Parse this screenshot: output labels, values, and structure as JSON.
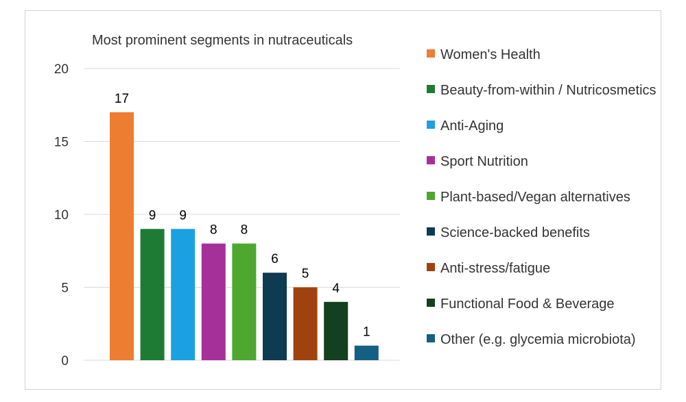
{
  "chart_data": {
    "type": "bar",
    "title": "Most prominent segments in nutraceuticals",
    "xlabel": "",
    "ylabel": "",
    "ylim": [
      0,
      20
    ],
    "yticks": [
      0,
      5,
      10,
      15,
      20
    ],
    "grid": true,
    "legend_position": "right",
    "categories": [
      "Women's Health",
      "Beauty-from-within / Nutricosmetics",
      "Anti-Aging",
      "Sport Nutrition",
      "Plant-based/Vegan alternatives",
      "Science-backed benefits",
      "Anti-stress/fatigue",
      "Functional Food & Beverage",
      "Other (e.g. glycemia microbiota)"
    ],
    "values": [
      17,
      9,
      9,
      8,
      8,
      6,
      5,
      4,
      1
    ],
    "colors": [
      "#ED7D31",
      "#1E7B34",
      "#1BA1E2",
      "#A5309A",
      "#4EA72E",
      "#0E3A52",
      "#A0420F",
      "#13401E",
      "#156082"
    ]
  }
}
